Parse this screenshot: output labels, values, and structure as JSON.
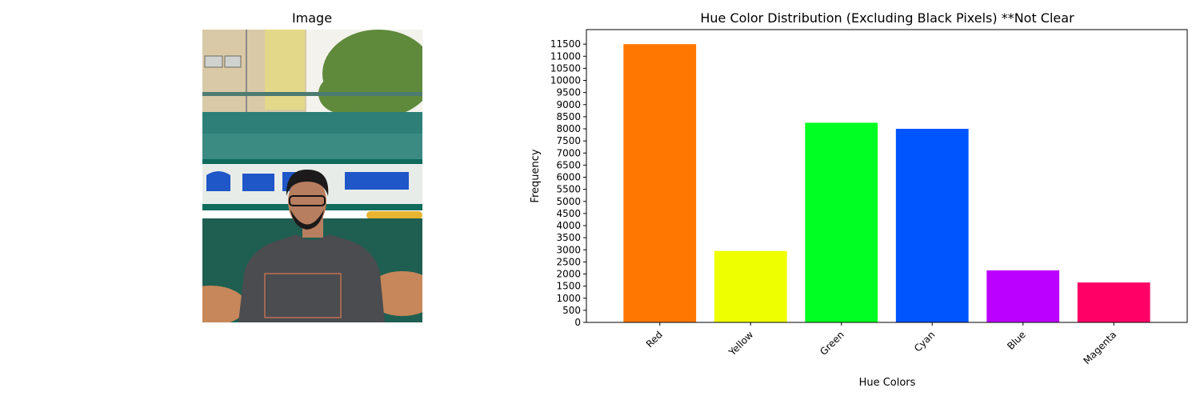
{
  "left_panel": {
    "title": "Image",
    "photo_description_icon": "photo-icon"
  },
  "photo": {
    "colors": {
      "sky": "#f3f2ec",
      "building": "#d9c9a6",
      "building_yellow": "#e3d88a",
      "tree": "#5f8a3c",
      "rail": "#4d7b72",
      "tank_top": "#2e7f78",
      "tank_teal": "#3c8b83",
      "stripe_white": "#e8ece9",
      "stripe_green": "#0f6b5b",
      "lower_teal": "#1f5f52",
      "hose": "#c7875a",
      "yellow_bar": "#e8b531",
      "text_blue": "#1f56c8",
      "shirt": "#4b4c4f",
      "skin": "#b87e60",
      "hair": "#1c1a1a",
      "shirt_print": "#d97a55"
    }
  },
  "chart_data": {
    "type": "bar",
    "title": "Hue Color Distribution (Excluding Black Pixels) **Not Clear",
    "xlabel": "Hue Colors",
    "ylabel": "Frequency",
    "categories": [
      "Red",
      "Yellow",
      "Green",
      "Cyan",
      "Blue",
      "Magenta"
    ],
    "values": [
      11500,
      2950,
      8250,
      8000,
      2150,
      1650
    ],
    "colors": [
      "#ff7700",
      "#eeff00",
      "#00ff22",
      "#0055ff",
      "#bb00ff",
      "#ff0066"
    ],
    "ylim": [
      0,
      12100
    ],
    "yticks": [
      0,
      500,
      1000,
      1500,
      2000,
      2500,
      3000,
      3500,
      4000,
      4500,
      5000,
      5500,
      6000,
      6500,
      7000,
      7500,
      8000,
      8500,
      9000,
      9500,
      10000,
      10500,
      11000,
      11500
    ],
    "xtick_rotation": 45,
    "grid": false,
    "legend": "none"
  }
}
